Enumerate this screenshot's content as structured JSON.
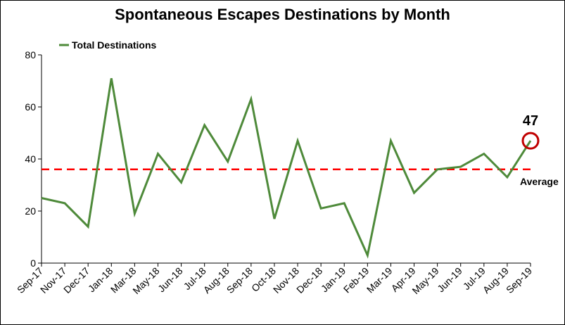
{
  "chart_data": {
    "type": "line",
    "title": "Spontaneous Escapes Destinations by Month",
    "xlabel": "",
    "ylabel": "",
    "ylim": [
      0,
      80
    ],
    "yticks": [
      0,
      20,
      40,
      60,
      80
    ],
    "grid": false,
    "legend_position": "top-left",
    "categories": [
      "Sep-17",
      "Nov-17",
      "Dec-17",
      "Jan-18",
      "Mar-18",
      "May-18",
      "Jun-18",
      "Jul-18",
      "Aug-18",
      "Sep-18",
      "Oct-18",
      "Nov-18",
      "Dec-18",
      "Jan-19",
      "Feb-19",
      "Mar-19",
      "Apr-19",
      "May-19",
      "Jun-19",
      "Jul-19",
      "Aug-19",
      "Sep-19"
    ],
    "series": [
      {
        "name": "Total Destinations",
        "color": "#4e8a3a",
        "values": [
          25,
          23,
          14,
          71,
          19,
          42,
          31,
          53,
          39,
          63,
          17,
          47,
          21,
          23,
          3,
          47,
          27,
          36,
          37,
          42,
          33,
          47
        ]
      }
    ],
    "reference_line": {
      "label": "Average",
      "value": 36,
      "color": "#ff0000",
      "style": "dashed"
    },
    "callout": {
      "label": "47",
      "category": "Sep-19",
      "value": 47,
      "color": "#c00000"
    }
  }
}
